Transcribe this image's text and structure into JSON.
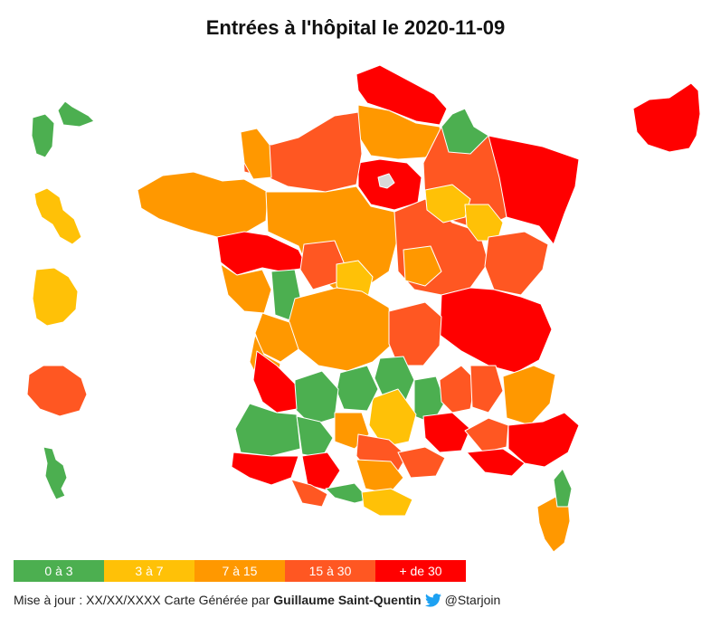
{
  "title": "Entrées à l'hôpital le 2020-11-09",
  "colors": {
    "green": "#4caf50",
    "yellow": "#ffc107",
    "orange": "#ff9800",
    "darkorange": "#ff5722",
    "red": "#ff0000",
    "nodata": "#d9d9d9",
    "border": "#ffffff"
  },
  "legend": [
    {
      "label": "0 à 3",
      "color": "#4caf50"
    },
    {
      "label": "3 à 7",
      "color": "#ffc107"
    },
    {
      "label": "7 à 15",
      "color": "#ff9800"
    },
    {
      "label": "15 à 30",
      "color": "#ff5722"
    },
    {
      "label": "+ de 30",
      "color": "#ff0000"
    }
  ],
  "footer": {
    "prefix": "Mise à jour : XX/XX/XXXX Carte Générée par",
    "author": "Guillaume Saint-Quentin",
    "twitter_icon": "twitter-bird-icon",
    "handle": "@Starjoin"
  }
}
